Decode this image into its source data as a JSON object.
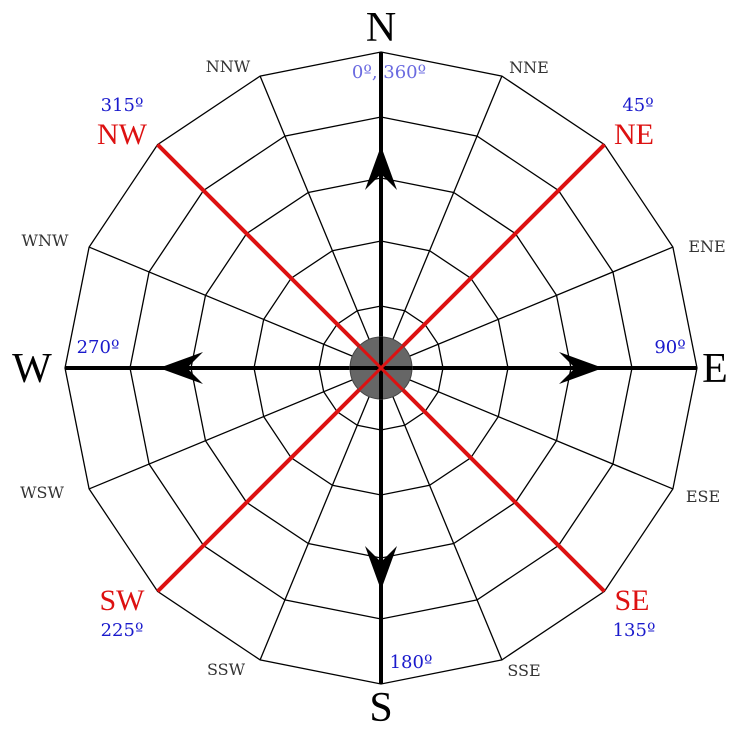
{
  "colors": {
    "ring_stroke": "#000000",
    "axis_color": "#000000",
    "intercardinal_color": "#dd1111",
    "degree_color": "#1a1acc",
    "degree_north_color": "#6a6ae0",
    "hub_fill": "#666666",
    "cardinal_text": "#000000",
    "minor_text": "#333333"
  },
  "cardinals": {
    "north": "N",
    "east": "E",
    "south": "S",
    "west": "W"
  },
  "intercardinals": {
    "northeast": "NE",
    "southeast": "SE",
    "southwest": "SW",
    "northwest": "NW"
  },
  "minor_points": {
    "nne": "NNE",
    "ene": "ENE",
    "ese": "ESE",
    "sse": "SSE",
    "ssw": "SSW",
    "wsw": "WSW",
    "wnw": "WNW",
    "nnw": "NNW"
  },
  "degrees": {
    "north": "0º, 360º",
    "east": "90º",
    "south": "180º",
    "west": "270º",
    "northeast": "45º",
    "southeast": "135º",
    "southwest": "225º",
    "northwest": "315º"
  }
}
